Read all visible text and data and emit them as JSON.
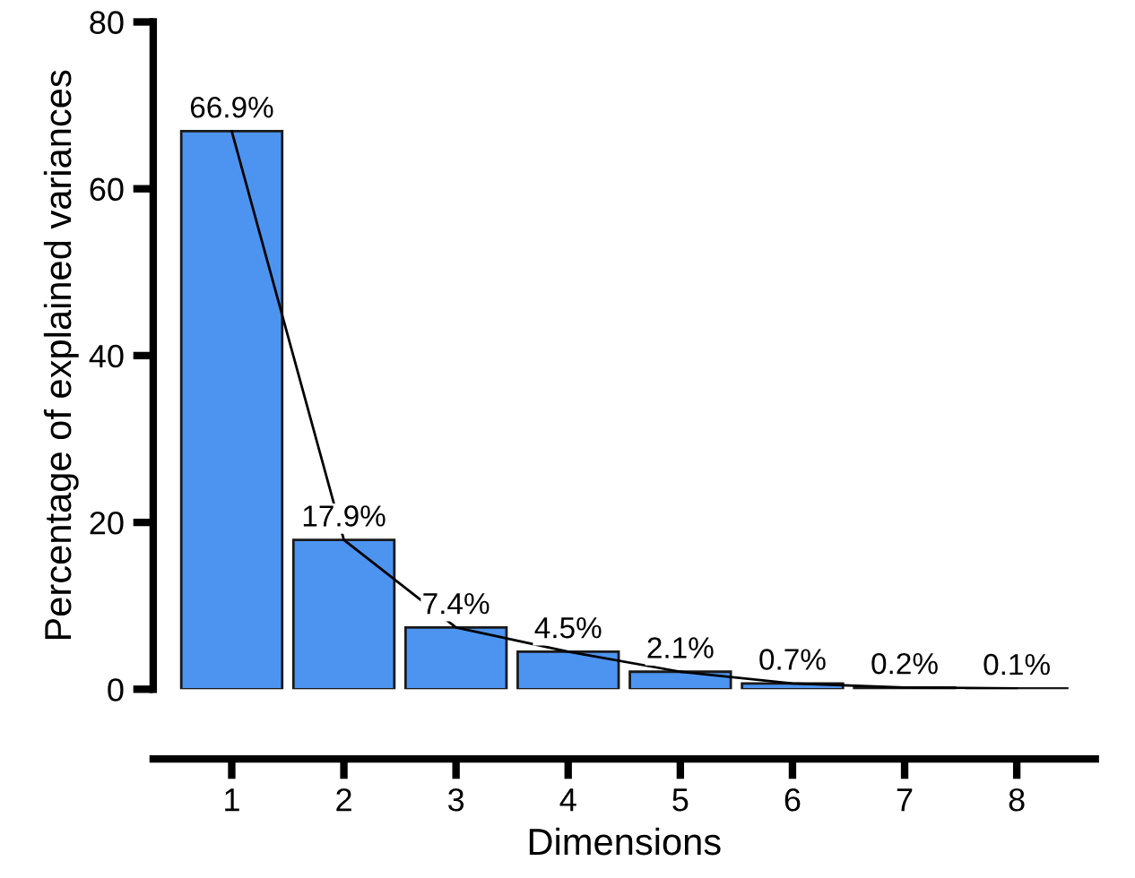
{
  "chart_data": {
    "type": "bar",
    "xlabel": "Dimensions",
    "ylabel": "Percentage of explained variances",
    "categories": [
      "1",
      "2",
      "3",
      "4",
      "5",
      "6",
      "7",
      "8"
    ],
    "series": [
      {
        "color": "#4d94f0",
        "values": [
          66.9,
          17.9,
          7.4,
          4.5,
          2.1,
          0.7,
          0.2,
          0.1
        ],
        "value_labels": [
          "66.9%",
          "17.9%",
          "7.4%",
          "4.5%",
          "2.1%",
          "0.7%",
          "0.2%",
          "0.1%"
        ]
      },
      {
        "type": "line",
        "color": "#000000",
        "values": [
          66.9,
          17.9,
          7.4,
          4.5,
          2.1,
          0.7,
          0.2,
          0.1
        ]
      }
    ],
    "ylim": [
      0,
      80
    ],
    "yticks": [
      0,
      20,
      40,
      60,
      80
    ],
    "grid": false,
    "marker": "none",
    "line_style": "solid"
  }
}
